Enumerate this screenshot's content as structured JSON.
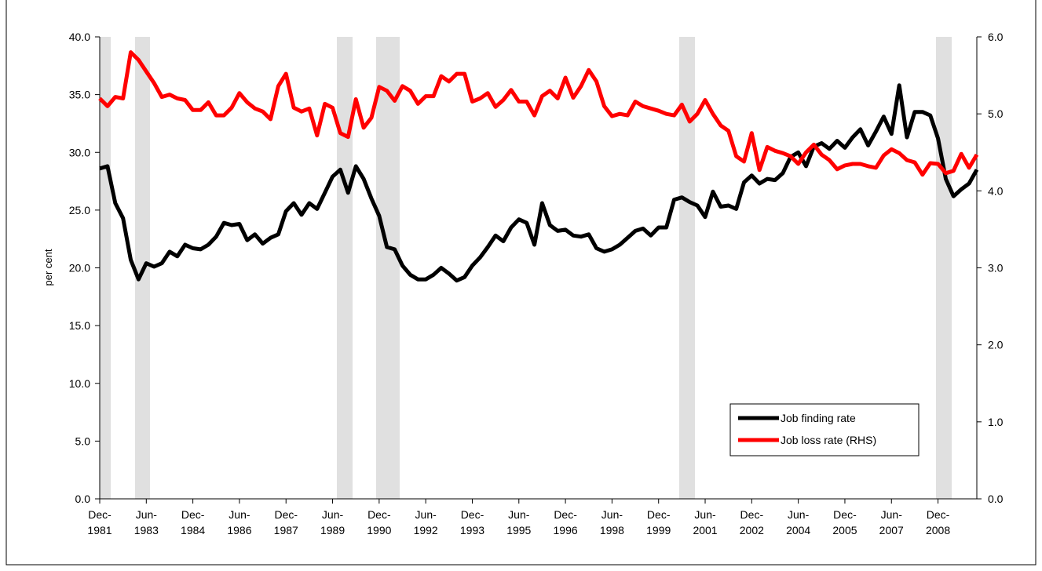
{
  "chart_data": {
    "type": "line",
    "y_label": "per cent",
    "categories": [
      "Dec-1981",
      null,
      null,
      null,
      null,
      null,
      "Jun-1983",
      null,
      null,
      null,
      null,
      null,
      "Dec-1984",
      null,
      null,
      null,
      null,
      null,
      "Jun-1986",
      null,
      null,
      null,
      null,
      null,
      "Dec-1987",
      null,
      null,
      null,
      null,
      null,
      "Jun-1989",
      null,
      null,
      null,
      null,
      null,
      "Dec-1990",
      null,
      null,
      null,
      null,
      null,
      "Jun-1992",
      null,
      null,
      null,
      null,
      null,
      "Dec-1993",
      null,
      null,
      null,
      null,
      null,
      "Jun-1995",
      null,
      null,
      null,
      null,
      null,
      "Dec-1996",
      null,
      null,
      null,
      null,
      null,
      "Jun-1998",
      null,
      null,
      null,
      null,
      null,
      "Dec-1999",
      null,
      null,
      null,
      null,
      null,
      "Jun-2001",
      null,
      null,
      null,
      null,
      null,
      "Dec-2002",
      null,
      null,
      null,
      null,
      null,
      "Jun-2004",
      null,
      null,
      null,
      null,
      null,
      "Dec-2005",
      null,
      null,
      null,
      null,
      null,
      "Jun-2007",
      null,
      null,
      null,
      null,
      null,
      "Dec-2008",
      null,
      null,
      null,
      null,
      null
    ],
    "series": [
      {
        "name": "Job finding rate",
        "color": "#000000",
        "values": [
          28.6,
          28.8,
          25.6,
          24.3,
          20.7,
          19.0,
          20.4,
          20.1,
          20.4,
          21.4,
          21.0,
          22.0,
          21.7,
          21.6,
          22.0,
          22.7,
          23.9,
          23.7,
          23.8,
          22.4,
          22.9,
          22.1,
          22.6,
          22.9,
          24.9,
          25.6,
          24.6,
          25.6,
          25.1,
          26.5,
          27.9,
          28.5,
          26.5,
          28.8,
          27.7,
          26.0,
          24.5,
          21.8,
          21.6,
          20.2,
          19.4,
          19.0,
          19.0,
          19.4,
          20.0,
          19.5,
          18.9,
          19.2,
          20.2,
          20.9,
          21.8,
          22.8,
          22.3,
          23.5,
          24.2,
          23.9,
          22.0,
          25.6,
          23.7,
          23.2,
          23.3,
          22.8,
          22.7,
          22.9,
          21.7,
          21.4,
          21.6,
          22.0,
          22.6,
          23.2,
          23.4,
          22.8,
          23.5,
          23.5,
          25.9,
          26.1,
          25.7,
          25.4,
          24.4,
          26.6,
          25.3,
          25.4,
          25.1,
          27.4,
          28.0,
          27.3,
          27.7,
          27.6,
          28.2,
          29.6,
          30.0,
          28.8,
          30.5,
          30.8,
          30.3,
          31.0,
          30.4,
          31.3,
          32.0,
          30.6,
          31.8,
          33.1,
          31.6,
          35.8,
          31.3,
          33.5,
          33.5,
          33.2,
          31.2,
          27.7,
          26.2,
          26.8,
          27.3,
          28.5
        ]
      },
      {
        "name": "Job loss rate (RHS)",
        "color": "#ff0000",
        "axis": "y2",
        "values": [
          5.2,
          5.1,
          5.22,
          5.2,
          5.8,
          5.7,
          5.55,
          5.4,
          5.22,
          5.25,
          5.2,
          5.18,
          5.05,
          5.05,
          5.15,
          4.98,
          4.98,
          5.08,
          5.27,
          5.15,
          5.07,
          5.03,
          4.93,
          5.36,
          5.52,
          5.08,
          5.03,
          5.07,
          4.72,
          5.13,
          5.08,
          4.75,
          4.7,
          5.19,
          4.82,
          4.95,
          5.35,
          5.3,
          5.17,
          5.36,
          5.3,
          5.13,
          5.23,
          5.23,
          5.49,
          5.42,
          5.52,
          5.52,
          5.16,
          5.2,
          5.27,
          5.09,
          5.18,
          5.31,
          5.16,
          5.16,
          4.98,
          5.23,
          5.3,
          5.2,
          5.47,
          5.21,
          5.36,
          5.57,
          5.42,
          5.1,
          4.97,
          5.0,
          4.98,
          5.16,
          5.1,
          5.07,
          5.04,
          5.0,
          4.98,
          5.12,
          4.9,
          5.0,
          5.18,
          5.0,
          4.85,
          4.78,
          4.45,
          4.38,
          4.75,
          4.27,
          4.57,
          4.52,
          4.49,
          4.45,
          4.35,
          4.5,
          4.6,
          4.47,
          4.4,
          4.28,
          4.33,
          4.35,
          4.35,
          4.32,
          4.3,
          4.46,
          4.54,
          4.49,
          4.4,
          4.37,
          4.21,
          4.36,
          4.35,
          4.23,
          4.26,
          4.48,
          4.3,
          4.47
        ]
      }
    ],
    "ylim": [
      0,
      40
    ],
    "yticks": [
      {
        "value": 0,
        "label": "0.0"
      },
      {
        "value": 5,
        "label": "5.0"
      },
      {
        "value": 10,
        "label": "10.0"
      },
      {
        "value": 15,
        "label": "15.0"
      },
      {
        "value": 20,
        "label": "20.0"
      },
      {
        "value": 25,
        "label": "25.0"
      },
      {
        "value": 30,
        "label": "30.0"
      },
      {
        "value": 35,
        "label": "35.0"
      },
      {
        "value": 40,
        "label": "40.0"
      }
    ],
    "y2lim": [
      0,
      6
    ],
    "y2ticks": [
      {
        "value": 0,
        "label": "0.0"
      },
      {
        "value": 1,
        "label": "1.0"
      },
      {
        "value": 2,
        "label": "2.0"
      },
      {
        "value": 3,
        "label": "3.0"
      },
      {
        "value": 4,
        "label": "4.0"
      },
      {
        "value": 5,
        "label": "5.0"
      },
      {
        "value": 6,
        "label": "6.0"
      }
    ],
    "legend": "lower right"
  }
}
